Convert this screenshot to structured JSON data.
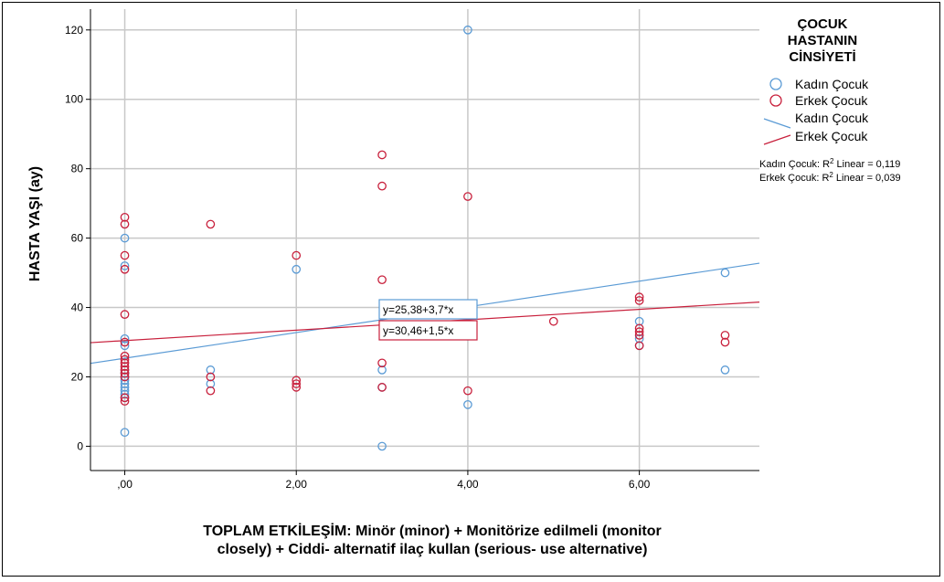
{
  "chart_data": {
    "type": "scatter",
    "title": "",
    "xlabel": "TOPLAM ETKİLEŞİM: Minör (minor) + Monitörize edilmeli (monitor closely) + Ciddi- alternatif ilaç kullan (serious- use alternative)",
    "xlabel_lines": [
      "TOPLAM ETKİLEŞİM: Minör (minor) + Monitörize edilmeli (monitor",
      "closely) + Ciddi- alternatif ilaç kullan (serious- use alternative)"
    ],
    "ylabel": "HASTA YAŞI (ay)",
    "xlim": [
      -0.4,
      7.4
    ],
    "ylim": [
      -7,
      126
    ],
    "x_ticks": [
      0,
      2,
      4,
      6
    ],
    "x_tick_labels": [
      ",00",
      "2,00",
      "4,00",
      "6,00"
    ],
    "y_ticks": [
      0,
      20,
      40,
      60,
      80,
      100,
      120
    ],
    "y_tick_labels": [
      "0",
      "20",
      "40",
      "60",
      "80",
      "100",
      "120"
    ],
    "grid": true,
    "legend": {
      "title_lines": [
        "ÇOCUK",
        "HASTANIN",
        "CİNSİYETİ"
      ],
      "placement": "right",
      "entries": [
        {
          "label": "Kadın Çocuk",
          "kind": "marker",
          "color": "#5b9bd5"
        },
        {
          "label": "Erkek Çocuk",
          "kind": "marker",
          "color": "#c8203c"
        },
        {
          "label": "Kadın Çocuk",
          "kind": "line",
          "color": "#5b9bd5"
        },
        {
          "label": "Erkek Çocuk",
          "kind": "line",
          "color": "#c8203c"
        }
      ],
      "r2_prefix": [
        "Kadın Çocuk: R",
        "Erkek Çocuk: R"
      ],
      "r2_sup": "2",
      "r2_suffix": [
        " Linear = 0,119",
        " Linear = 0,039"
      ]
    },
    "series": [
      {
        "name": "Kadın Çocuk",
        "color": "#5b9bd5",
        "points": [
          [
            0,
            4
          ],
          [
            0,
            14
          ],
          [
            0,
            15
          ],
          [
            0,
            16
          ],
          [
            0,
            17
          ],
          [
            0,
            18
          ],
          [
            0,
            19
          ],
          [
            0,
            20
          ],
          [
            0,
            21
          ],
          [
            0,
            22
          ],
          [
            0,
            29
          ],
          [
            0,
            31
          ],
          [
            0,
            52
          ],
          [
            0,
            60
          ],
          [
            1,
            18
          ],
          [
            1,
            22
          ],
          [
            2,
            51
          ],
          [
            3,
            0
          ],
          [
            3,
            17
          ],
          [
            3,
            22
          ],
          [
            4,
            12
          ],
          [
            4,
            120
          ],
          [
            6,
            29
          ],
          [
            6,
            31
          ],
          [
            6,
            36
          ],
          [
            7,
            22
          ],
          [
            7,
            50
          ]
        ],
        "fit": {
          "intercept": 25.38,
          "slope": 3.7,
          "label": "y=25,38+3,7*x"
        }
      },
      {
        "name": "Erkek Çocuk",
        "color": "#c8203c",
        "points": [
          [
            0,
            13
          ],
          [
            0,
            14
          ],
          [
            0,
            20
          ],
          [
            0,
            21
          ],
          [
            0,
            22
          ],
          [
            0,
            23
          ],
          [
            0,
            24
          ],
          [
            0,
            25
          ],
          [
            0,
            26
          ],
          [
            0,
            30
          ],
          [
            0,
            38
          ],
          [
            0,
            51
          ],
          [
            0,
            55
          ],
          [
            0,
            64
          ],
          [
            0,
            66
          ],
          [
            1,
            16
          ],
          [
            1,
            20
          ],
          [
            1,
            64
          ],
          [
            2,
            17
          ],
          [
            2,
            18
          ],
          [
            2,
            19
          ],
          [
            2,
            55
          ],
          [
            3,
            17
          ],
          [
            3,
            24
          ],
          [
            3,
            48
          ],
          [
            3,
            75
          ],
          [
            3,
            84
          ],
          [
            4,
            16
          ],
          [
            4,
            72
          ],
          [
            5,
            36
          ],
          [
            6,
            29
          ],
          [
            6,
            32
          ],
          [
            6,
            33
          ],
          [
            6,
            34
          ],
          [
            6,
            42
          ],
          [
            6,
            43
          ],
          [
            7,
            30
          ],
          [
            7,
            32
          ]
        ],
        "fit": {
          "intercept": 30.46,
          "slope": 1.5,
          "label": "y=30,46+1,5*x"
        }
      }
    ]
  }
}
